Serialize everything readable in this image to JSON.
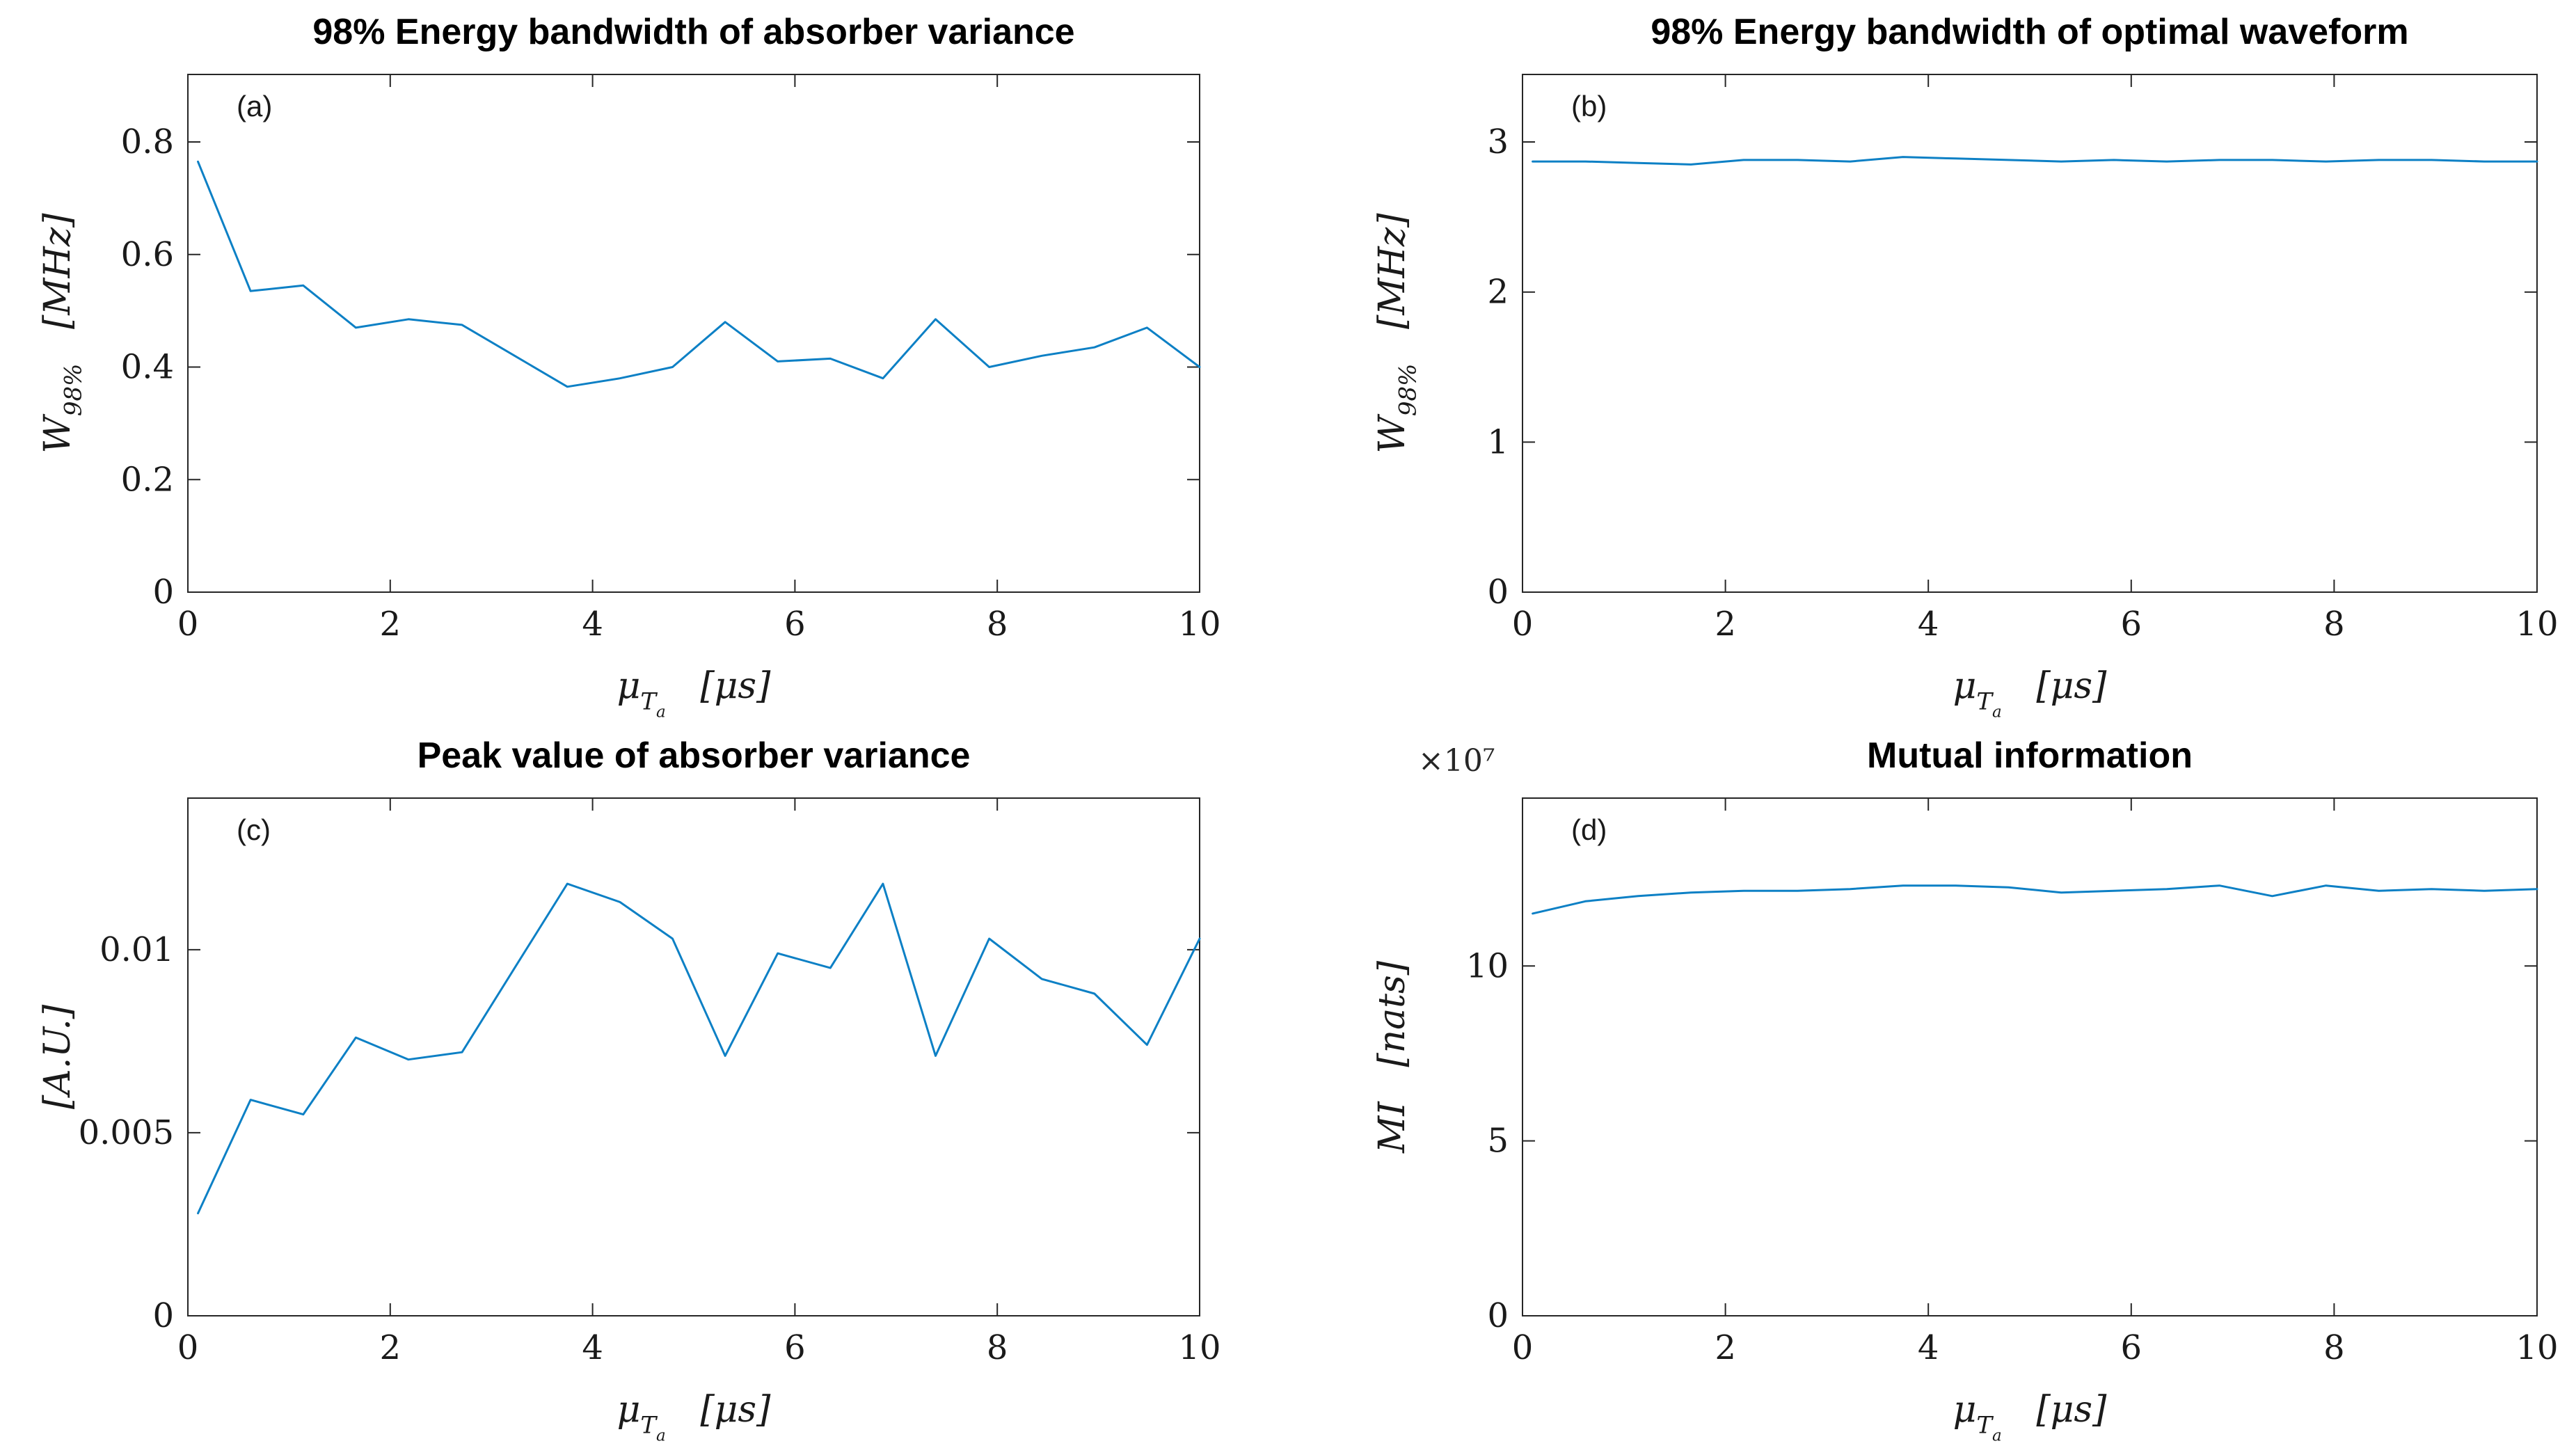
{
  "figure": {
    "background": "#ffffff",
    "axis_color": "#262626",
    "line_color": "#0d80c5",
    "text_color": "#1a1a1a"
  },
  "chart_data": [
    {
      "id": "a",
      "type": "line",
      "title": "98% Energy bandwidth of absorber variance",
      "annotation": "(a)",
      "xlabel": "μ_{T_{a}}   [μs]",
      "ylabel": "W_{98%}   [MHz]",
      "xlim": [
        0,
        10
      ],
      "ylim": [
        0,
        0.92
      ],
      "xticks": [
        0,
        2,
        4,
        6,
        8,
        10
      ],
      "xtick_labels": [
        "0",
        "2",
        "4",
        "6",
        "8",
        "10"
      ],
      "yticks": [
        0,
        0.2,
        0.4,
        0.6,
        0.8
      ],
      "ytick_labels": [
        "0",
        "0.2",
        "0.4",
        "0.6",
        "0.8"
      ],
      "grid": false,
      "legend": null,
      "x": [
        0.1,
        0.62,
        1.14,
        1.66,
        2.18,
        2.71,
        3.23,
        3.75,
        4.27,
        4.79,
        5.31,
        5.83,
        6.35,
        6.87,
        7.39,
        7.92,
        8.44,
        8.96,
        9.48,
        10
      ],
      "y": [
        0.765,
        0.535,
        0.545,
        0.47,
        0.485,
        0.475,
        0.42,
        0.365,
        0.38,
        0.4,
        0.48,
        0.41,
        0.415,
        0.38,
        0.485,
        0.4,
        0.42,
        0.435,
        0.47,
        0.4
      ]
    },
    {
      "id": "b",
      "type": "line",
      "title": "98% Energy bandwidth of optimal waveform",
      "annotation": "(b)",
      "xlabel": "μ_{T_{a}}   [μs]",
      "ylabel": "W_{98%}   [MHz]",
      "xlim": [
        0,
        10
      ],
      "ylim": [
        0,
        3.45
      ],
      "xticks": [
        0,
        2,
        4,
        6,
        8,
        10
      ],
      "xtick_labels": [
        "0",
        "2",
        "4",
        "6",
        "8",
        "10"
      ],
      "yticks": [
        0,
        1,
        2,
        3
      ],
      "ytick_labels": [
        "0",
        "1",
        "2",
        "3"
      ],
      "grid": false,
      "legend": null,
      "x": [
        0.1,
        0.62,
        1.14,
        1.66,
        2.18,
        2.71,
        3.23,
        3.75,
        4.27,
        4.79,
        5.31,
        5.83,
        6.35,
        6.87,
        7.39,
        7.92,
        8.44,
        8.96,
        9.48,
        10
      ],
      "y": [
        2.87,
        2.87,
        2.86,
        2.85,
        2.88,
        2.88,
        2.87,
        2.9,
        2.89,
        2.88,
        2.87,
        2.88,
        2.87,
        2.88,
        2.88,
        2.87,
        2.88,
        2.88,
        2.87,
        2.87
      ]
    },
    {
      "id": "c",
      "type": "line",
      "title": "Peak value of absorber variance",
      "annotation": "(c)",
      "xlabel": "μ_{T_{a}}   [μs]",
      "ylabel": "[A.U.]",
      "xlim": [
        0,
        10
      ],
      "ylim": [
        0,
        0.01414
      ],
      "xticks": [
        0,
        2,
        4,
        6,
        8,
        10
      ],
      "xtick_labels": [
        "0",
        "2",
        "4",
        "6",
        "8",
        "10"
      ],
      "yticks": [
        0,
        0.005,
        0.01
      ],
      "ytick_labels": [
        "0",
        "0.005",
        "0.01"
      ],
      "grid": false,
      "legend": null,
      "x": [
        0.1,
        0.62,
        1.14,
        1.66,
        2.18,
        2.71,
        3.23,
        3.75,
        4.27,
        4.79,
        5.31,
        5.83,
        6.35,
        6.87,
        7.39,
        7.92,
        8.44,
        8.96,
        9.48,
        10
      ],
      "y": [
        0.0028,
        0.0059,
        0.0055,
        0.0076,
        0.007,
        0.0072,
        0.0095,
        0.0118,
        0.0113,
        0.0103,
        0.0071,
        0.0099,
        0.0095,
        0.0118,
        0.0071,
        0.0103,
        0.0092,
        0.0088,
        0.0074,
        0.0103
      ]
    },
    {
      "id": "d",
      "type": "line",
      "title": "Mutual information",
      "annotation": "(d)",
      "exponent": "×10⁷",
      "exponent_meaning": "y values scaled by 10^7",
      "xlabel": "μ_{T_{a}}   [μs]",
      "ylabel": "MI   [nats]",
      "xlim": [
        0,
        10
      ],
      "ylim": [
        0,
        14.8
      ],
      "xticks": [
        0,
        2,
        4,
        6,
        8,
        10
      ],
      "xtick_labels": [
        "0",
        "2",
        "4",
        "6",
        "8",
        "10"
      ],
      "yticks": [
        0,
        5,
        10
      ],
      "ytick_labels": [
        "0",
        "5",
        "10"
      ],
      "grid": false,
      "legend": null,
      "x": [
        0.1,
        0.62,
        1.14,
        1.66,
        2.18,
        2.71,
        3.23,
        3.75,
        4.27,
        4.79,
        5.31,
        5.83,
        6.35,
        6.87,
        7.39,
        7.92,
        8.44,
        8.96,
        9.48,
        10
      ],
      "y": [
        11.5,
        11.85,
        12.0,
        12.1,
        12.15,
        12.15,
        12.2,
        12.3,
        12.3,
        12.25,
        12.1,
        12.15,
        12.2,
        12.3,
        12.0,
        12.3,
        12.15,
        12.2,
        12.15,
        12.2
      ]
    }
  ]
}
